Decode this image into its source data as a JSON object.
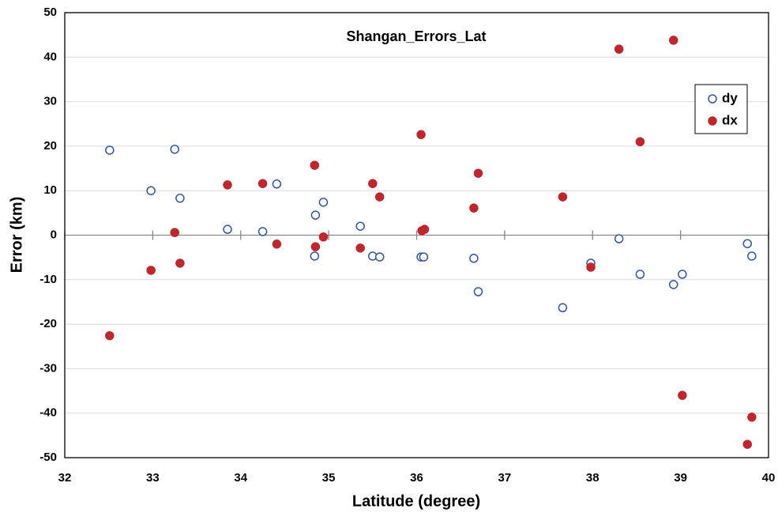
{
  "chart_data": {
    "type": "scatter",
    "title": "Shangan_Errors_Lat",
    "x_label": "Latitude (degree)",
    "y_label": "Error (km)",
    "xlim": [
      32,
      40
    ],
    "xticks": [
      32,
      33,
      34,
      35,
      36,
      37,
      38,
      39,
      40
    ],
    "ylim": [
      -50,
      50
    ],
    "yticks": [
      -50,
      -40,
      -30,
      -20,
      -10,
      0,
      10,
      20,
      30,
      40,
      50
    ],
    "grid": true,
    "legend": "upper right",
    "series": [
      {
        "name": "dy",
        "color": "#2f55a4",
        "filled": false,
        "x": [
          32.51,
          32.98,
          33.25,
          33.31,
          33.85,
          34.25,
          34.41,
          34.84,
          34.85,
          34.94,
          35.36,
          35.5,
          35.58,
          36.05,
          36.08,
          36.65,
          36.7,
          37.66,
          37.98,
          38.3,
          38.54,
          38.92,
          39.02,
          39.76,
          39.81
        ],
        "values": [
          19.1,
          10.0,
          19.3,
          8.3,
          1.3,
          0.8,
          11.5,
          -4.7,
          4.5,
          7.4,
          2.0,
          -4.7,
          -4.9,
          -4.9,
          -4.9,
          -5.2,
          -12.7,
          -16.3,
          -6.3,
          -0.8,
          -8.8,
          -11.1,
          -8.8,
          -1.9,
          -4.7
        ]
      },
      {
        "name": "dx",
        "color": "#c0262d",
        "filled": true,
        "x": [
          32.51,
          32.98,
          33.25,
          33.31,
          33.85,
          34.25,
          34.41,
          34.84,
          34.85,
          34.94,
          35.36,
          35.5,
          35.58,
          36.05,
          36.06,
          36.09,
          36.65,
          36.7,
          37.66,
          37.98,
          38.3,
          38.54,
          38.92,
          39.02,
          39.76,
          39.81
        ],
        "values": [
          -22.6,
          -7.9,
          0.6,
          -6.3,
          11.3,
          11.6,
          -2.0,
          15.7,
          -2.6,
          -0.4,
          -2.9,
          11.6,
          8.6,
          22.6,
          1.0,
          1.3,
          6.1,
          13.9,
          8.6,
          -7.2,
          41.8,
          21.0,
          43.8,
          -36.0,
          -47.0,
          -40.9
        ]
      }
    ]
  }
}
